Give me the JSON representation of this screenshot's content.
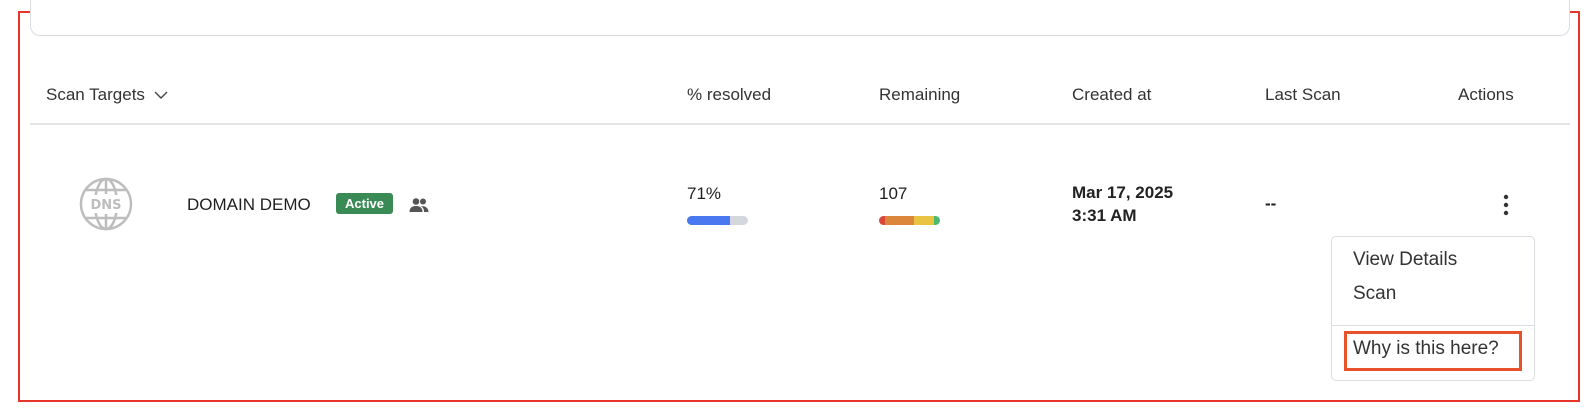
{
  "table": {
    "headers": {
      "scan_targets": "Scan Targets",
      "resolved": "% resolved",
      "remaining": "Remaining",
      "created_at": "Created at",
      "last_scan": "Last Scan",
      "actions": "Actions"
    },
    "rows": [
      {
        "icon": "dns-globe-icon",
        "name": "DOMAIN DEMO",
        "status": "Active",
        "status_color": "#3a8a55",
        "shared_icon": "users-icon",
        "resolved": "71%",
        "resolved_fraction": 0.71,
        "remaining": "107",
        "remaining_severity_fractions": [
          {
            "color": "#d9473a",
            "value": 0.1
          },
          {
            "color": "#db863a",
            "value": 0.47
          },
          {
            "color": "#e8c442",
            "value": 0.33
          },
          {
            "color": "#4cba6e",
            "value": 0.1
          }
        ],
        "created_date": "Mar 17, 2025",
        "created_time": "3:31 AM",
        "last_scan": "--"
      }
    ]
  },
  "actions_menu": {
    "items": [
      "View Details",
      "Scan"
    ],
    "help_item": "Why is this here?"
  },
  "colors": {
    "progress": "#4a78f0",
    "progress_track": "#d4d8de",
    "highlight": "#e8522a"
  }
}
